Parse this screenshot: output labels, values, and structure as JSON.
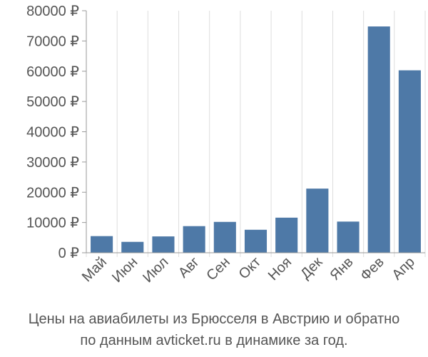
{
  "chart_data": {
    "type": "bar",
    "categories": [
      "Май",
      "Июн",
      "Июл",
      "Авг",
      "Сен",
      "Окт",
      "Ноя",
      "Дек",
      "Янв",
      "Фев",
      "Апр"
    ],
    "values": [
      5500,
      3600,
      5400,
      8800,
      10200,
      7600,
      11600,
      21200,
      10300,
      74800,
      60300
    ],
    "ylim": [
      0,
      80000
    ],
    "yticks": [
      0,
      10000,
      20000,
      30000,
      40000,
      50000,
      60000,
      70000,
      80000
    ],
    "ytick_labels": [
      "0 ₽",
      "10000 ₽",
      "20000 ₽",
      "30000 ₽",
      "40000 ₽",
      "50000 ₽",
      "60000 ₽",
      "70000 ₽",
      "80000 ₽"
    ],
    "grid": "vertical",
    "title": "",
    "xlabel": "",
    "ylabel": "",
    "bar_color": "#4e79a7",
    "grid_color": "#dddddd",
    "axis_color": "#999999"
  },
  "caption": {
    "line1": "Цены на авиабилеты из Брюсселя в Австрию и обратно",
    "line2": "по данным avticket.ru в динамике за год."
  }
}
